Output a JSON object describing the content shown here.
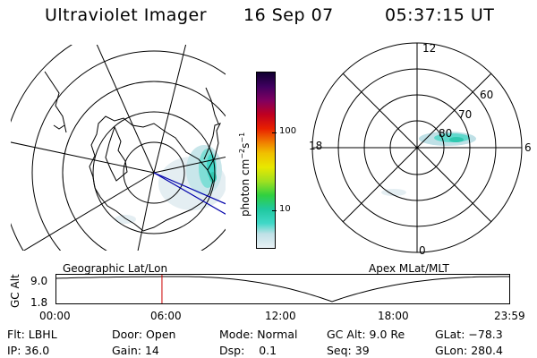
{
  "header": {
    "title": "Ultraviolet Imager",
    "date": "16 Sep 07",
    "time": "05:37:15 UT"
  },
  "colorbar": {
    "label": "photon cm⁻²s⁻¹",
    "label_base": "photon cm",
    "label_exp1": "−2",
    "label_s": "s",
    "label_exp2": "−1",
    "ticks": [
      "100",
      "10"
    ],
    "tick_values": [
      100,
      10
    ],
    "scale": "log",
    "colors": [
      "#e8f0f4",
      "#bfe0e6",
      "#40d8c8",
      "#20c8a0",
      "#30d040",
      "#a0e020",
      "#e8e800",
      "#f0c000",
      "#f08000",
      "#e82000",
      "#c00020",
      "#800060",
      "#400060",
      "#100030"
    ]
  },
  "left_map": {
    "caption": "Geographic Lat/Lon"
  },
  "right_map": {
    "caption": "Apex MLat/MLT",
    "mlt_labels": [
      "12",
      "6",
      "0",
      "18"
    ],
    "mlat_labels": [
      "60",
      "70",
      "80"
    ]
  },
  "timeline": {
    "ylabel": "GC Alt",
    "y_ticks": [
      "9.0",
      "1.8"
    ],
    "x_ticks": [
      "00:00",
      "06:00",
      "12:00",
      "18:00",
      "23:59"
    ],
    "marker_time_hours": 5.62,
    "orbit_min_time_hours": 14.6
  },
  "info": {
    "row1": [
      {
        "label": "Flt:",
        "value": "LBHL"
      },
      {
        "label": "Door:",
        "value": "Open"
      },
      {
        "label": "Mode:",
        "value": "Normal"
      },
      {
        "label": "GC Alt:",
        "value": "9.0 Re"
      },
      {
        "label": "GLat:",
        "value": "−78.3"
      }
    ],
    "row2": [
      {
        "label": "IP:",
        "value": "36.0"
      },
      {
        "label": "Gain:",
        "value": "14"
      },
      {
        "label": "Dsp:",
        "value": "0.1"
      },
      {
        "label": "Seq:",
        "value": "39"
      },
      {
        "label": "GLon:",
        "value": "280.4"
      }
    ]
  }
}
